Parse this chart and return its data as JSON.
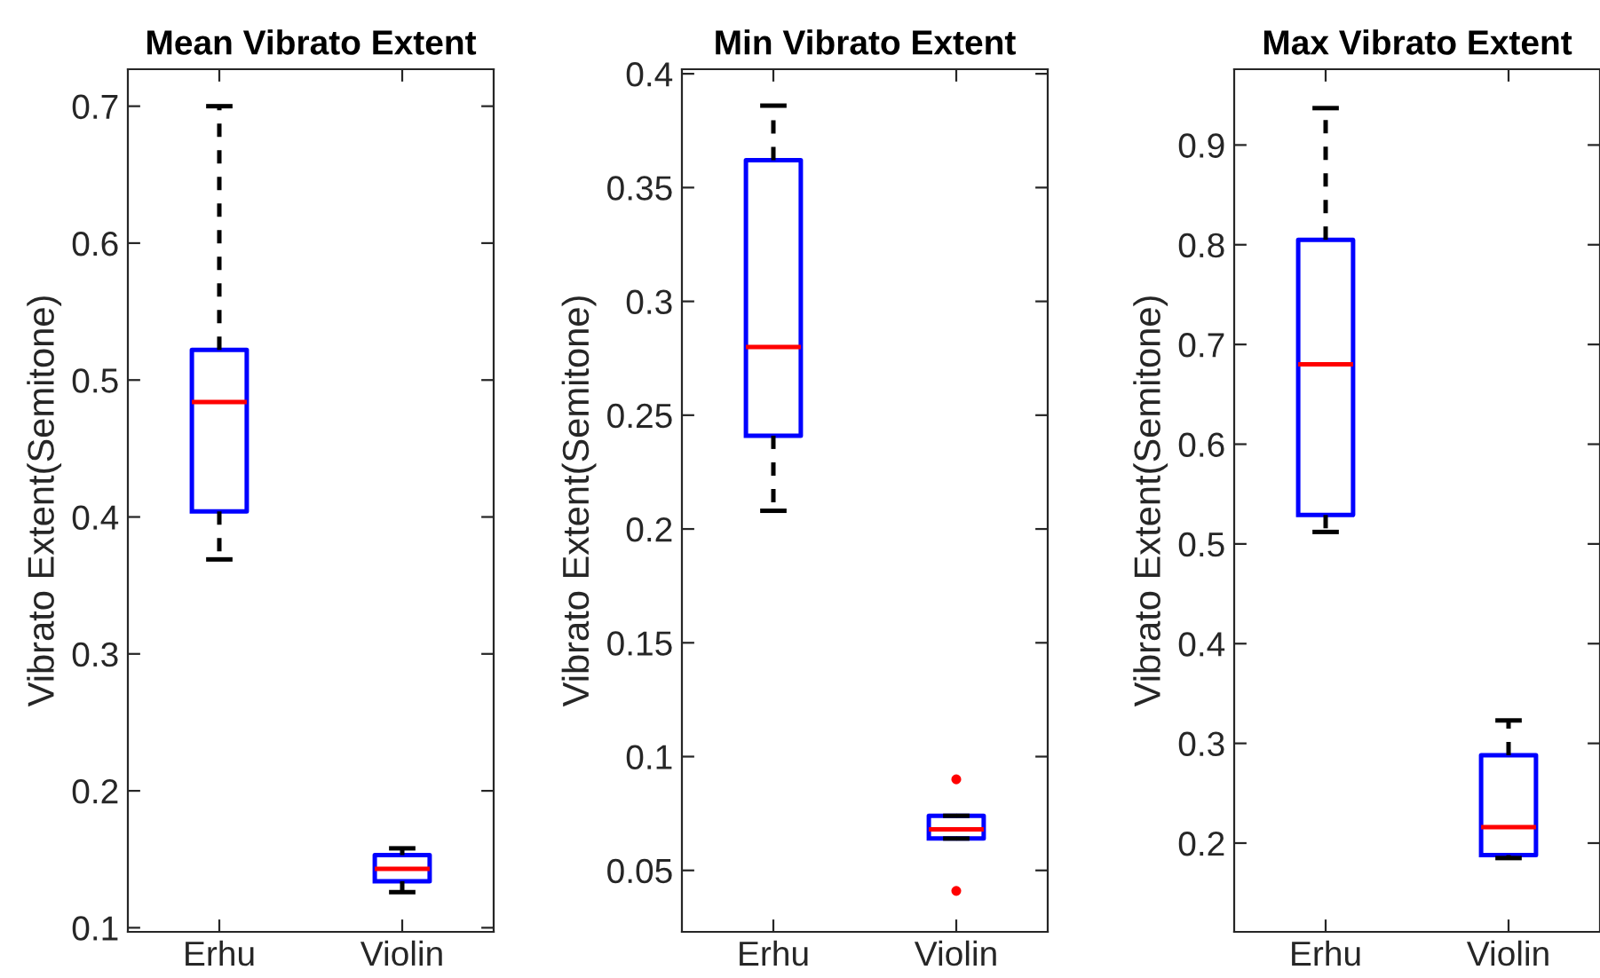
{
  "chart_data": [
    {
      "type": "box",
      "title": "Mean Vibrato Extent",
      "ylabel": "Vibrato Extent(Semitone)",
      "categories": [
        "Erhu",
        "Violin"
      ],
      "boxes": [
        {
          "low": 0.369,
          "q1": 0.404,
          "median": 0.484,
          "q3": 0.522,
          "high": 0.7
        },
        {
          "low": 0.126,
          "q1": 0.134,
          "median": 0.143,
          "q3": 0.153,
          "high": 0.158
        }
      ],
      "ylim": [
        0.097,
        0.727
      ],
      "yticks": [
        0.1,
        0.2,
        0.3,
        0.4,
        0.5,
        0.6,
        0.7
      ],
      "grid": false
    },
    {
      "type": "box",
      "title": "Min Vibrato Extent",
      "ylabel": "Vibrato Extent(Semitone)",
      "categories": [
        "Erhu",
        "Violin"
      ],
      "boxes": [
        {
          "low": 0.208,
          "q1": 0.241,
          "median": 0.28,
          "q3": 0.362,
          "high": 0.386
        },
        {
          "low": 0.064,
          "q1": 0.064,
          "median": 0.068,
          "q3": 0.074,
          "high": 0.074,
          "outliers": [
            0.09,
            0.041
          ]
        }
      ],
      "ylim": [
        0.023,
        0.402
      ],
      "yticks": [
        0.05,
        0.1,
        0.15,
        0.2,
        0.25,
        0.3,
        0.35,
        0.4
      ],
      "grid": false
    },
    {
      "type": "box",
      "title": "Max Vibrato Extent",
      "ylabel": "Vibrato Extent(Semitone)",
      "categories": [
        "Erhu",
        "Violin"
      ],
      "boxes": [
        {
          "low": 0.512,
          "q1": 0.529,
          "median": 0.68,
          "q3": 0.805,
          "high": 0.937
        },
        {
          "low": 0.185,
          "q1": 0.188,
          "median": 0.216,
          "q3": 0.288,
          "high": 0.323
        }
      ],
      "ylim": [
        0.111,
        0.976
      ],
      "yticks": [
        0.2,
        0.3,
        0.4,
        0.5,
        0.6,
        0.7,
        0.8,
        0.9
      ],
      "grid": false
    }
  ]
}
